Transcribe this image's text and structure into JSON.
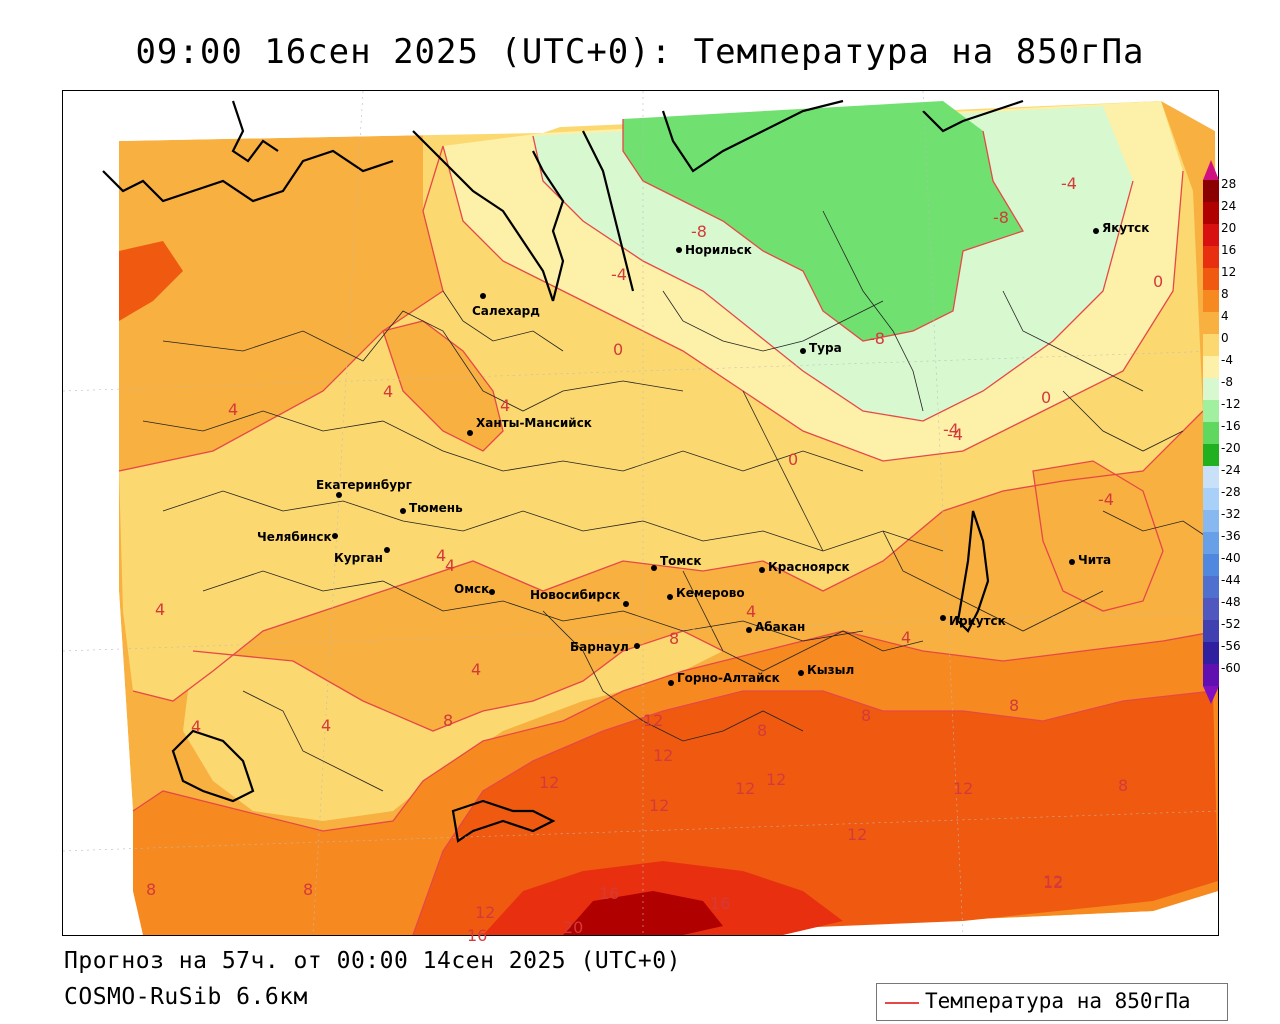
{
  "title": "09:00 16сен 2025 (UTC+0): Температура на 850гПа",
  "footer": {
    "forecast": "Прогноз на 57ч. от 00:00 14сен 2025 (UTC+0)",
    "model": "COSMO-RuSib 6.6км"
  },
  "legend": {
    "label": "Температура на 850гПа",
    "line_color": "#e64848"
  },
  "color_scale": {
    "labels": [
      "28",
      "24",
      "20",
      "16",
      "12",
      "8",
      "4",
      "0",
      "-4",
      "-8",
      "-12",
      "-16",
      "-20",
      "-24",
      "-28",
      "-32",
      "-36",
      "-40",
      "-44",
      "-48",
      "-52",
      "-56",
      "-60"
    ],
    "colors": [
      "#8b0000",
      "#b00000",
      "#d81010",
      "#e83010",
      "#f05a10",
      "#f68a20",
      "#f8b040",
      "#fbd870",
      "#fdf0a8",
      "#d8f8d0",
      "#a0f0a0",
      "#60d860",
      "#20b020",
      "#c8e0f8",
      "#a8d0f8",
      "#88b8f0",
      "#68a0e8",
      "#5088e0",
      "#5070d0",
      "#5058c0",
      "#4040b0",
      "#3020a0",
      "#6010b0"
    ]
  },
  "cities": [
    {
      "name": "Норильск"
    },
    {
      "name": "Якутск"
    },
    {
      "name": "Салехард"
    },
    {
      "name": "Тура"
    },
    {
      "name": "Ханты-Мансийск"
    },
    {
      "name": "Екатеринбург"
    },
    {
      "name": "Тюмень"
    },
    {
      "name": "Челябинск"
    },
    {
      "name": "Курган"
    },
    {
      "name": "Омск"
    },
    {
      "name": "Томск"
    },
    {
      "name": "Красноярск"
    },
    {
      "name": "Новосибирск"
    },
    {
      "name": "Кемерово"
    },
    {
      "name": "Барнаул"
    },
    {
      "name": "Абакан"
    },
    {
      "name": "Иркутск"
    },
    {
      "name": "Горно-Алтайск"
    },
    {
      "name": "Кызыл"
    },
    {
      "name": "Чита"
    }
  ],
  "isotherm_labels": [
    "-8",
    "-8",
    "-4",
    "-4",
    "0",
    "-8",
    "0",
    "4",
    "4",
    "4",
    "-4",
    "0",
    "0",
    "-4",
    "4",
    "4",
    "4",
    "4",
    "4",
    "4",
    "4",
    "4",
    "8",
    "8",
    "12",
    "12",
    "12",
    "12",
    "8",
    "8",
    "8",
    "12",
    "12",
    "12",
    "12",
    "12",
    "8",
    "8",
    "8",
    "12",
    "16",
    "16",
    "12",
    "20",
    "16",
    "-4"
  ]
}
